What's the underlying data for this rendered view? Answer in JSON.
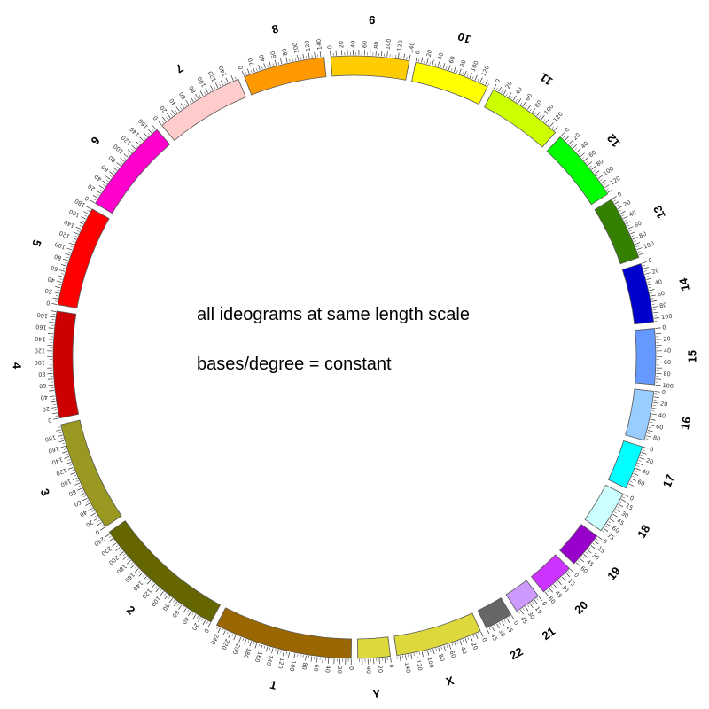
{
  "captions": {
    "line1": "all ideograms at same length scale",
    "line2": "bases/degree = constant"
  },
  "ideograms": [
    {
      "label": "1",
      "length": 248,
      "label_step": 20,
      "color": "#996600"
    },
    {
      "label": "2",
      "length": 243,
      "label_step": 20,
      "color": "#666600"
    },
    {
      "label": "3",
      "length": 199,
      "label_step": 20,
      "color": "#999922"
    },
    {
      "label": "4",
      "length": 191,
      "label_step": 20,
      "color": "#CC0000"
    },
    {
      "label": "5",
      "length": 181,
      "label_step": 20,
      "color": "#FF0000"
    },
    {
      "label": "6",
      "length": 171,
      "label_step": 20,
      "color": "#FF00CC"
    },
    {
      "label": "7",
      "length": 159,
      "label_step": 20,
      "color": "#FFCCCC"
    },
    {
      "label": "8",
      "length": 146,
      "label_step": 20,
      "color": "#FF9900"
    },
    {
      "label": "9",
      "length": 140,
      "label_step": 20,
      "color": "#FFCC00"
    },
    {
      "label": "10",
      "length": 135,
      "label_step": 20,
      "color": "#FFFF00"
    },
    {
      "label": "11",
      "length": 134,
      "label_step": 20,
      "color": "#CCFF00"
    },
    {
      "label": "12",
      "length": 132,
      "label_step": 20,
      "color": "#00FF00"
    },
    {
      "label": "13",
      "length": 114,
      "label_step": 20,
      "color": "#358000"
    },
    {
      "label": "14",
      "length": 106,
      "label_step": 20,
      "color": "#0000CC"
    },
    {
      "label": "15",
      "length": 100,
      "label_step": 20,
      "color": "#6699FF"
    },
    {
      "label": "16",
      "length": 89,
      "label_step": 20,
      "color": "#99CCFF"
    },
    {
      "label": "17",
      "length": 79,
      "label_step": 20,
      "color": "#00FFFF"
    },
    {
      "label": "18",
      "length": 76,
      "label_step": 15,
      "color": "#CCFFFF"
    },
    {
      "label": "19",
      "length": 64,
      "label_step": 15,
      "color": "#9900CC"
    },
    {
      "label": "20",
      "length": 62,
      "label_step": 15,
      "color": "#CC33FF"
    },
    {
      "label": "21",
      "length": 47,
      "label_step": 15,
      "color": "#CC99FF"
    },
    {
      "label": "22",
      "length": 50,
      "label_step": 15,
      "color": "#666666"
    },
    {
      "label": "X",
      "length": 155,
      "label_step": 20,
      "color": "#DDD83B"
    },
    {
      "label": "Y",
      "length": 58,
      "label_step": 20,
      "color": "#DDD83B"
    }
  ]
}
